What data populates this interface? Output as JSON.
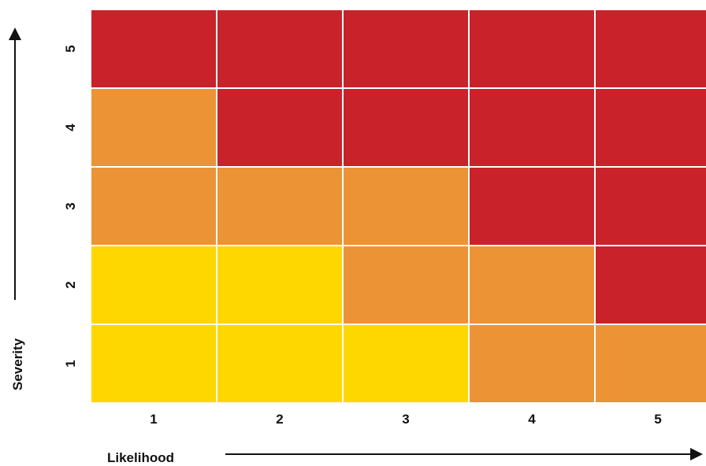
{
  "chart_data": {
    "type": "heatmap",
    "xlabel": "Likelihood",
    "ylabel": "Severity",
    "x": [
      1,
      2,
      3,
      4,
      5
    ],
    "y": [
      1,
      2,
      3,
      4,
      5
    ],
    "x_tick_labels": [
      "1",
      "2",
      "3",
      "4",
      "5"
    ],
    "y_tick_labels": [
      "1",
      "2",
      "3",
      "4",
      "5"
    ],
    "cells": [
      [
        "high",
        "high",
        "high",
        "high",
        "high"
      ],
      [
        "medium",
        "high",
        "high",
        "high",
        "high"
      ],
      [
        "medium",
        "medium",
        "medium",
        "high",
        "high"
      ],
      [
        "low",
        "low",
        "medium",
        "medium",
        "high"
      ],
      [
        "low",
        "low",
        "low",
        "medium",
        "medium"
      ]
    ],
    "row_order": "top-to-bottom from severity 5 to severity 1",
    "colors": {
      "low": "#fed700",
      "medium": "#ec9335",
      "high": "#c9222a",
      "gridline": "#ffffff",
      "text": "#111111"
    },
    "grid": true,
    "legend": "none"
  }
}
